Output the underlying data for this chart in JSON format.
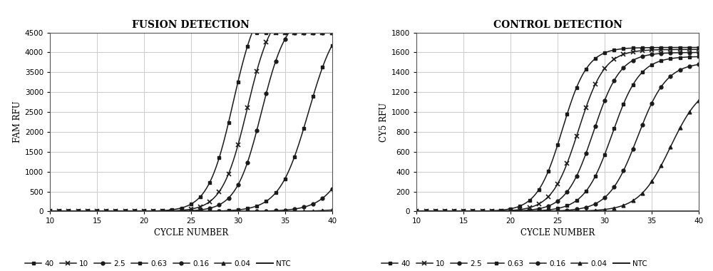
{
  "left_title": "FUSION DETECTION",
  "right_title": "CONTROL DETECTION",
  "xlabel": "CYCLE NUMBER",
  "left_ylabel": "FAM RFU",
  "right_ylabel": "CY5 RFU",
  "x_min": 10,
  "x_max": 40,
  "left_ylim": [
    0,
    4500
  ],
  "right_ylim": [
    0,
    1800
  ],
  "left_yticks": [
    0,
    500,
    1000,
    1500,
    2000,
    2500,
    3000,
    3500,
    4000,
    4500
  ],
  "right_yticks": [
    0,
    200,
    400,
    600,
    800,
    1000,
    1200,
    1400,
    1600,
    1800
  ],
  "x_ticks": [
    10,
    15,
    20,
    25,
    30,
    35,
    40
  ],
  "legend_labels": [
    "40",
    "10",
    "2.5",
    "0.63",
    "0.16",
    "0.04",
    "NTC"
  ],
  "line_color": "#1a1a1a",
  "background_color": "#ffffff",
  "grid_color": "#cccccc",
  "left_series": [
    {
      "label": "40",
      "midpoint": 29.5,
      "rate": 0.75,
      "max": 5500
    },
    {
      "label": "10",
      "midpoint": 31.0,
      "rate": 0.75,
      "max": 5200
    },
    {
      "label": "2.5",
      "midpoint": 32.5,
      "rate": 0.75,
      "max": 5000
    },
    {
      "label": "0.63",
      "midpoint": 37.5,
      "rate": 0.65,
      "max": 5000
    },
    {
      "label": "0.16",
      "midpoint": 43.0,
      "rate": 0.6,
      "max": 4000
    },
    {
      "label": "0.04",
      "midpoint": 48.0,
      "rate": 0.55,
      "max": 3000
    },
    {
      "label": "NTC",
      "midpoint": 55.0,
      "rate": 0.5,
      "max": 500
    }
  ],
  "right_series": [
    {
      "label": "40",
      "midpoint": 25.5,
      "rate": 0.75,
      "max": 1650
    },
    {
      "label": "10",
      "midpoint": 27.2,
      "rate": 0.72,
      "max": 1630
    },
    {
      "label": "2.5",
      "midpoint": 28.8,
      "rate": 0.7,
      "max": 1600
    },
    {
      "label": "0.63",
      "midpoint": 30.8,
      "rate": 0.68,
      "max": 1560
    },
    {
      "label": "0.16",
      "midpoint": 33.5,
      "rate": 0.65,
      "max": 1500
    },
    {
      "label": "0.04",
      "midpoint": 37.0,
      "rate": 0.6,
      "max": 1300
    },
    {
      "label": "NTC",
      "midpoint": 60.0,
      "rate": 0.55,
      "max": 100
    }
  ],
  "marker_styles": {
    "40": {
      "marker": "s",
      "ms": 3.5,
      "mfc": "#1a1a1a",
      "mew": 1.0
    },
    "10": {
      "marker": "x",
      "ms": 4.5,
      "mfc": "#1a1a1a",
      "mew": 1.2
    },
    "2.5": {
      "marker": "o",
      "ms": 3.5,
      "mfc": "#1a1a1a",
      "mew": 1.0
    },
    "0.63": {
      "marker": "s",
      "ms": 3.5,
      "mfc": "#1a1a1a",
      "mew": 1.0
    },
    "0.16": {
      "marker": "o",
      "ms": 3.5,
      "mfc": "#1a1a1a",
      "mew": 1.0
    },
    "0.04": {
      "marker": "^",
      "ms": 3.5,
      "mfc": "#1a1a1a",
      "mew": 1.0
    },
    "NTC": {
      "marker": "",
      "ms": 3.5,
      "mfc": "#1a1a1a",
      "mew": 1.0
    }
  }
}
